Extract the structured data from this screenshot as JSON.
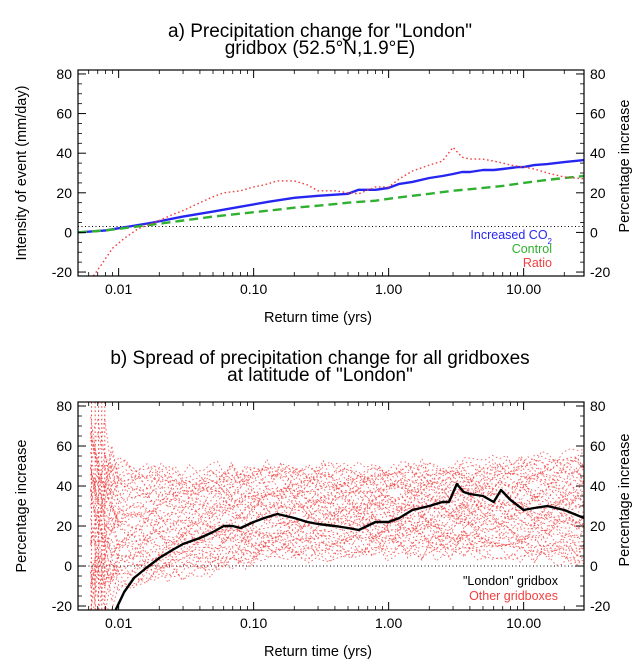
{
  "figure": {
    "panel_a": {
      "title_line1": "a) Precipitation change for \"London\"",
      "title_line2": "gridbox (52.5°N,1.9°E)"
    },
    "panel_b": {
      "title_line1": "b) Spread of precipitation change for all gridboxes",
      "title_line2": "at latitude of \"London\""
    }
  },
  "chart_data": [
    {
      "type": "line",
      "title": "a) Precipitation change for \"London\" gridbox (52.5°N,1.9°E)",
      "xlabel": "Return time (yrs)",
      "ylabel": "Intensity of event (mm/day)",
      "ylabel_right": "Percentage increase",
      "x_scale": "log",
      "xlim": [
        0.005,
        28
      ],
      "ylim": [
        -22,
        82
      ],
      "x_ticks": [
        0.01,
        0.1,
        1.0,
        10.0
      ],
      "x_tick_labels": [
        "0.01",
        "0.10",
        "1.00",
        "10.00"
      ],
      "y_ticks": [
        -20,
        0,
        20,
        40,
        60,
        80
      ],
      "y_tick_labels": [
        "-20",
        "0",
        "20",
        "40",
        "60",
        "80"
      ],
      "legend_placement": "bottom-right",
      "reference_line_y": 3,
      "series": [
        {
          "name": "Increased CO",
          "name_subscript": "2",
          "color": "#2626f0",
          "style": "solid",
          "x": [
            0.005,
            0.008,
            0.012,
            0.018,
            0.03,
            0.05,
            0.08,
            0.13,
            0.2,
            0.3,
            0.5,
            0.6,
            0.8,
            1.0,
            1.2,
            1.5,
            2.0,
            2.5,
            3.0,
            3.5,
            4.0,
            5.0,
            6.0,
            7.0,
            8.0,
            9.0,
            10.0,
            12.0,
            15.0,
            20.0,
            28.0
          ],
          "y": [
            0,
            1,
            3,
            5,
            8,
            10.5,
            13,
            15.5,
            17.5,
            18.5,
            19.5,
            21.5,
            21.5,
            22.5,
            24.5,
            25.5,
            27.5,
            28.5,
            29.5,
            30.5,
            30.5,
            31.5,
            31.5,
            32,
            32.5,
            33,
            33,
            34,
            34.5,
            35.5,
            36.5
          ]
        },
        {
          "name": "Control",
          "color": "#30b030",
          "style": "dashed",
          "x": [
            0.005,
            0.008,
            0.012,
            0.018,
            0.03,
            0.05,
            0.08,
            0.13,
            0.2,
            0.3,
            0.5,
            0.8,
            1.0,
            1.5,
            2.0,
            3.0,
            5.0,
            7.0,
            10.0,
            15.0,
            20.0,
            28.0
          ],
          "y": [
            0,
            1,
            2.5,
            4,
            6,
            8,
            9.5,
            11,
            12.5,
            13.5,
            15,
            16,
            17,
            18.5,
            19.5,
            21,
            22.5,
            23.5,
            25,
            26.5,
            27.5,
            28.5
          ]
        },
        {
          "name": "Ratio",
          "color": "#f04040",
          "style": "dotted",
          "x": [
            0.0065,
            0.0075,
            0.009,
            0.011,
            0.014,
            0.017,
            0.02,
            0.025,
            0.03,
            0.04,
            0.05,
            0.06,
            0.08,
            0.1,
            0.12,
            0.15,
            0.2,
            0.25,
            0.3,
            0.4,
            0.5,
            0.6,
            0.8,
            1.0,
            1.2,
            1.5,
            2.0,
            2.5,
            3.0,
            3.5,
            4.0,
            5.0,
            6.0,
            7.0,
            8.0,
            10.0,
            12.0,
            15.0,
            20.0,
            28.0
          ],
          "y": [
            -22,
            -16,
            -8,
            -3,
            2,
            4,
            6,
            9,
            11,
            15,
            18,
            20,
            21,
            23,
            24,
            26,
            26,
            24,
            21,
            21,
            20,
            19.5,
            23,
            23,
            27,
            31,
            34,
            36,
            43,
            38,
            37,
            37,
            36,
            35,
            34,
            33,
            32,
            30,
            28,
            27
          ]
        }
      ]
    },
    {
      "type": "line",
      "title": "b) Spread of precipitation change for all gridboxes at latitude of \"London\"",
      "xlabel": "Return time (yrs)",
      "ylabel": "Percentage increase",
      "ylabel_right": "Percentage increase",
      "x_scale": "log",
      "xlim": [
        0.005,
        28
      ],
      "ylim": [
        -22,
        82
      ],
      "x_ticks": [
        0.01,
        0.1,
        1.0,
        10.0
      ],
      "x_tick_labels": [
        "0.01",
        "0.10",
        "1.00",
        "10.00"
      ],
      "y_ticks": [
        -20,
        0,
        20,
        40,
        60,
        80
      ],
      "y_tick_labels": [
        "-20",
        "0",
        "20",
        "40",
        "60",
        "80"
      ],
      "legend_placement": "bottom-right",
      "reference_line_y": 0,
      "spread_note": "Many red dotted lines (Other gridboxes) mostly spanning about 0 to 50 percent, with a large scattered spread below 0.01 yrs",
      "spread_band": {
        "x": [
          0.006,
          0.01,
          0.03,
          0.1,
          0.3,
          1.0,
          3.0,
          10.0,
          28.0
        ],
        "low": [
          -20,
          -12,
          -5,
          2,
          5,
          6,
          6,
          4,
          2
        ],
        "high": [
          70,
          52,
          48,
          50,
          50,
          50,
          50,
          54,
          55
        ]
      },
      "series": [
        {
          "name": "\"London\" gridbox",
          "color": "#000000",
          "style": "solid",
          "x": [
            0.0095,
            0.011,
            0.013,
            0.016,
            0.02,
            0.025,
            0.03,
            0.04,
            0.05,
            0.06,
            0.07,
            0.08,
            0.1,
            0.12,
            0.15,
            0.2,
            0.25,
            0.3,
            0.4,
            0.5,
            0.6,
            0.8,
            1.0,
            1.2,
            1.5,
            2.0,
            2.5,
            2.8,
            3.2,
            3.6,
            4.0,
            5.0,
            6.0,
            6.8,
            8.0,
            10.0,
            12.0,
            15.0,
            20.0,
            28.0
          ],
          "y": [
            -22,
            -13,
            -6,
            -1,
            4,
            8,
            11,
            14,
            17,
            20,
            20,
            19,
            22,
            24,
            26,
            24,
            22,
            21,
            20,
            19,
            18,
            22,
            22,
            24,
            28,
            30,
            32,
            32,
            41,
            37,
            36,
            35,
            32,
            38,
            33,
            28,
            29,
            30,
            28,
            24
          ]
        },
        {
          "name": "Other gridboxes",
          "color": "#f04040",
          "style": "dotted"
        }
      ]
    }
  ]
}
